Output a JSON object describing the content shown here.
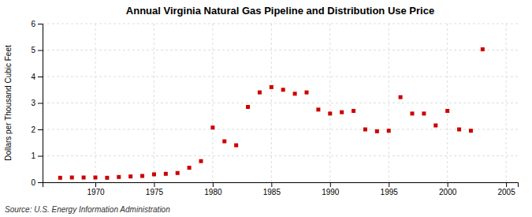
{
  "chart_data": {
    "type": "scatter",
    "title": "Annual Virginia Natural Gas Pipeline and Distribution Use Price",
    "ylabel": "Dollars per Thousand Cubic Feet",
    "source": "Source: U.S. Energy Information Administration",
    "x": [
      1967,
      1968,
      1969,
      1970,
      1971,
      1972,
      1973,
      1974,
      1975,
      1976,
      1977,
      1978,
      1979,
      1980,
      1981,
      1982,
      1983,
      1984,
      1985,
      1986,
      1987,
      1988,
      1989,
      1990,
      1991,
      1992,
      1993,
      1994,
      1995,
      1996,
      1997,
      1998,
      1999,
      2000,
      2001,
      2002,
      2003
    ],
    "values": [
      0.17,
      0.18,
      0.18,
      0.18,
      0.17,
      0.2,
      0.22,
      0.24,
      0.3,
      0.32,
      0.35,
      0.55,
      0.8,
      2.07,
      1.55,
      1.4,
      2.85,
      3.4,
      3.6,
      3.5,
      3.35,
      3.4,
      2.75,
      2.6,
      2.65,
      2.7,
      2.0,
      1.93,
      1.95,
      3.22,
      2.6,
      2.6,
      2.15,
      2.7,
      2.0,
      1.95,
      5.03
    ],
    "color": "#cc0000",
    "marker": "square",
    "xlim": [
      1965.5,
      2006
    ],
    "ylim": [
      0,
      6
    ],
    "xticks": [
      1970,
      1975,
      1980,
      1985,
      1990,
      1995,
      2000,
      2005
    ],
    "yticks": [
      0,
      1,
      2,
      3,
      4,
      5,
      6
    ],
    "grid": true
  }
}
